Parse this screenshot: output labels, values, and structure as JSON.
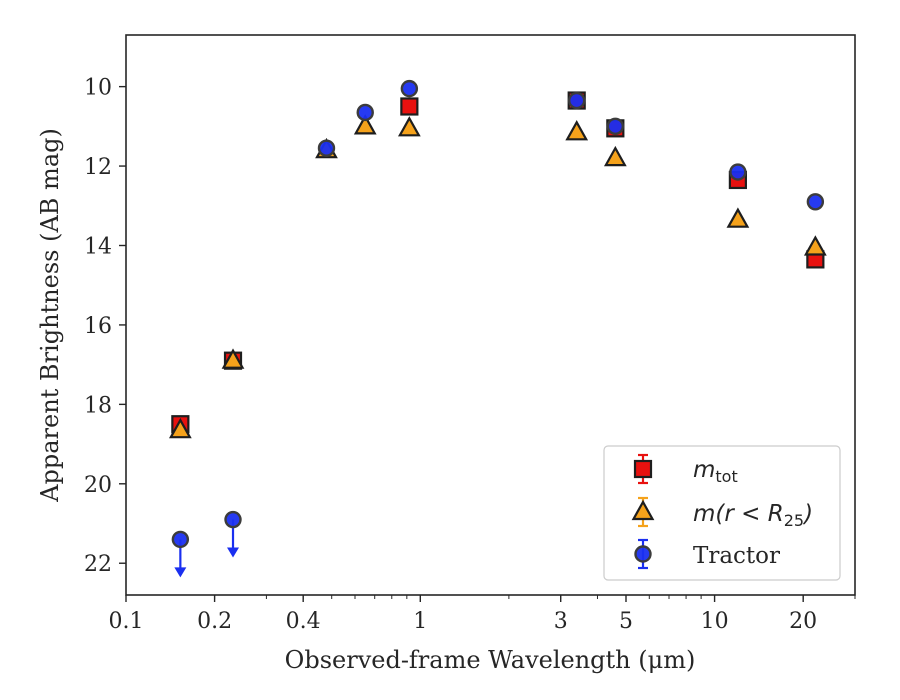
{
  "chart_data": {
    "type": "scatter",
    "xlabel": "Observed-frame Wavelength (μm)",
    "ylabel": "Apparent Brightness (AB mag)",
    "xscale": "log",
    "xlim": [
      0.1,
      30
    ],
    "ylim": [
      22.8,
      8.7
    ],
    "y_inverted": true,
    "x_ticks": [
      0.1,
      0.2,
      0.4,
      1,
      3,
      5,
      10,
      20
    ],
    "x_tick_labels": [
      "0.1",
      "0.2",
      "0.4",
      "1",
      "3",
      "5",
      "10",
      "20"
    ],
    "y_ticks": [
      10,
      12,
      14,
      16,
      18,
      20,
      22
    ],
    "y_tick_labels": [
      "10",
      "12",
      "14",
      "16",
      "18",
      "20",
      "22"
    ],
    "legend_position": "lower-right",
    "grid": false,
    "series": [
      {
        "name": "m_tot",
        "legend_main": "m",
        "legend_sub": "tot",
        "marker": "square",
        "color": "#e8110f",
        "x": [
          0.153,
          0.231,
          0.918,
          3.4,
          4.6,
          12.0,
          22.0
        ],
        "y": [
          18.5,
          16.9,
          10.5,
          10.35,
          11.05,
          12.35,
          14.35
        ]
      },
      {
        "name": "m(r < R25)",
        "legend_main": "m(r < R",
        "legend_sub": "25",
        "legend_tail": ")",
        "marker": "triangle",
        "color": "#f5a21b",
        "x": [
          0.153,
          0.231,
          0.48,
          0.65,
          0.918,
          3.4,
          4.6,
          12.0,
          22.0
        ],
        "y": [
          18.65,
          16.9,
          11.6,
          11.0,
          11.05,
          11.15,
          11.8,
          13.35,
          14.05
        ]
      },
      {
        "name": "Tractor",
        "legend_main": "Tractor",
        "marker": "circle",
        "color": "#1a2ff0",
        "x": [
          0.153,
          0.231,
          0.48,
          0.65,
          0.918,
          3.4,
          4.6,
          12.0,
          22.0
        ],
        "y": [
          21.4,
          20.9,
          11.55,
          10.65,
          10.05,
          10.35,
          11.0,
          12.15,
          12.9
        ],
        "upper_limits": [
          true,
          true,
          false,
          false,
          false,
          false,
          false,
          false,
          false
        ]
      }
    ]
  }
}
